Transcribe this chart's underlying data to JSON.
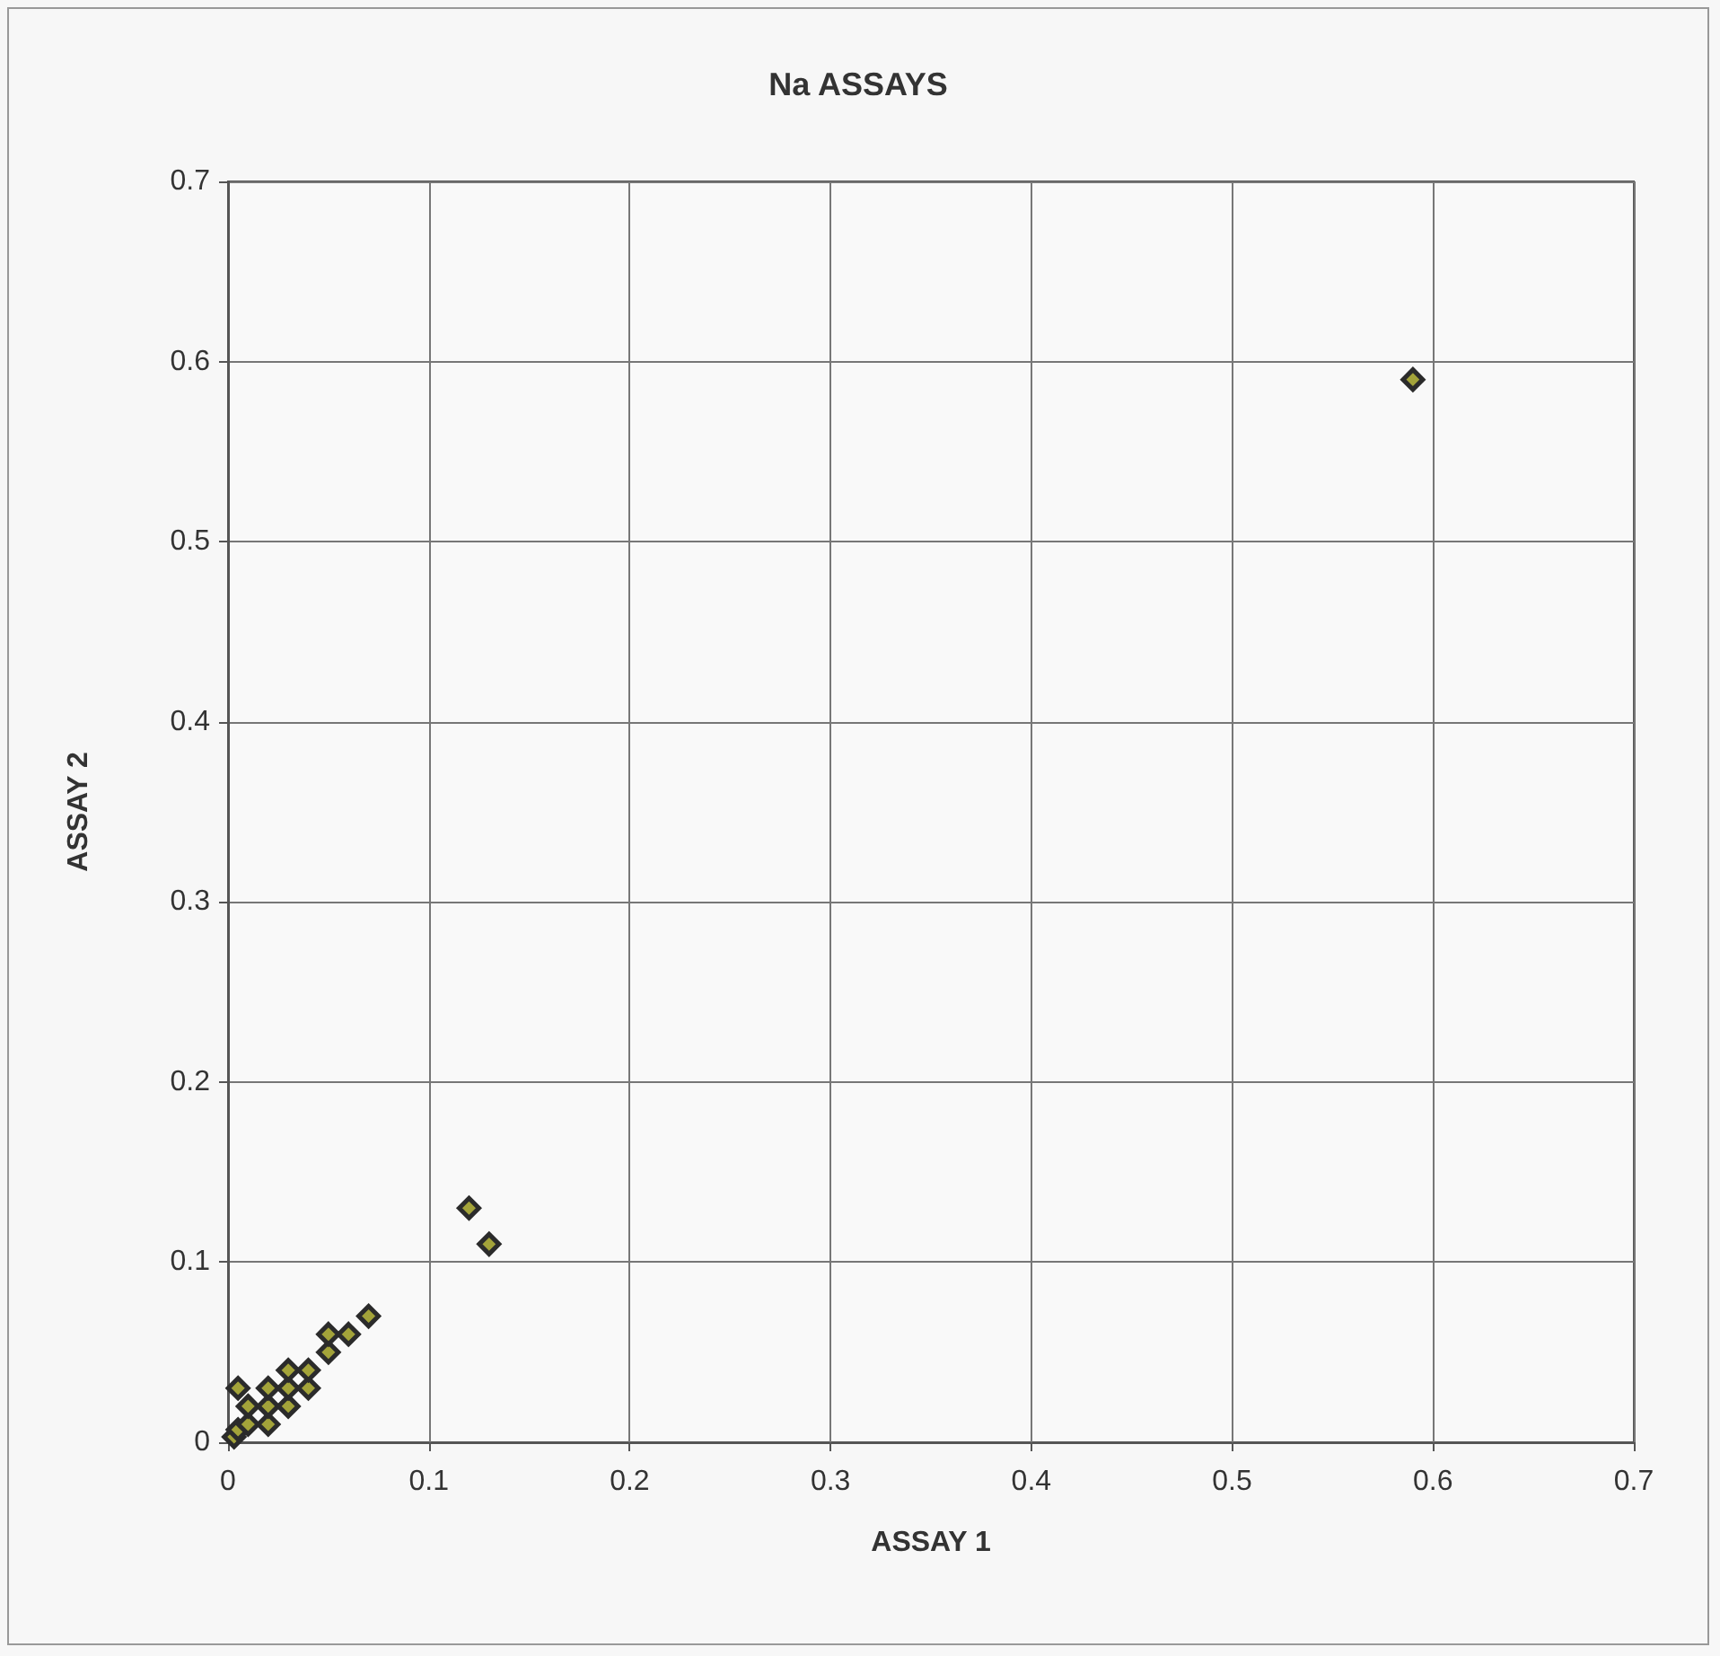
{
  "chart_data": {
    "type": "scatter",
    "title": "Na ASSAYS",
    "xlabel": "ASSAY 1",
    "ylabel": "ASSAY 2",
    "x": [
      0.003,
      0.005,
      0.005,
      0.01,
      0.01,
      0.02,
      0.02,
      0.02,
      0.03,
      0.03,
      0.03,
      0.04,
      0.04,
      0.05,
      0.05,
      0.06,
      0.07,
      0.12,
      0.13,
      0.59
    ],
    "values": [
      0.003,
      0.007,
      0.03,
      0.01,
      0.02,
      0.01,
      0.02,
      0.03,
      0.02,
      0.03,
      0.04,
      0.03,
      0.04,
      0.05,
      0.06,
      0.06,
      0.07,
      0.13,
      0.11,
      0.59
    ],
    "color": "#a3a33a",
    "marker": "diamond",
    "grid": true,
    "xlim": [
      0,
      0.7
    ],
    "xticks": [
      0,
      0.1,
      0.2,
      0.3,
      0.4,
      0.5,
      0.6,
      0.7
    ],
    "ylim": [
      0,
      0.7
    ],
    "yticks": [
      0,
      0.1,
      0.2,
      0.3,
      0.4,
      0.5,
      0.6,
      0.7
    ]
  }
}
